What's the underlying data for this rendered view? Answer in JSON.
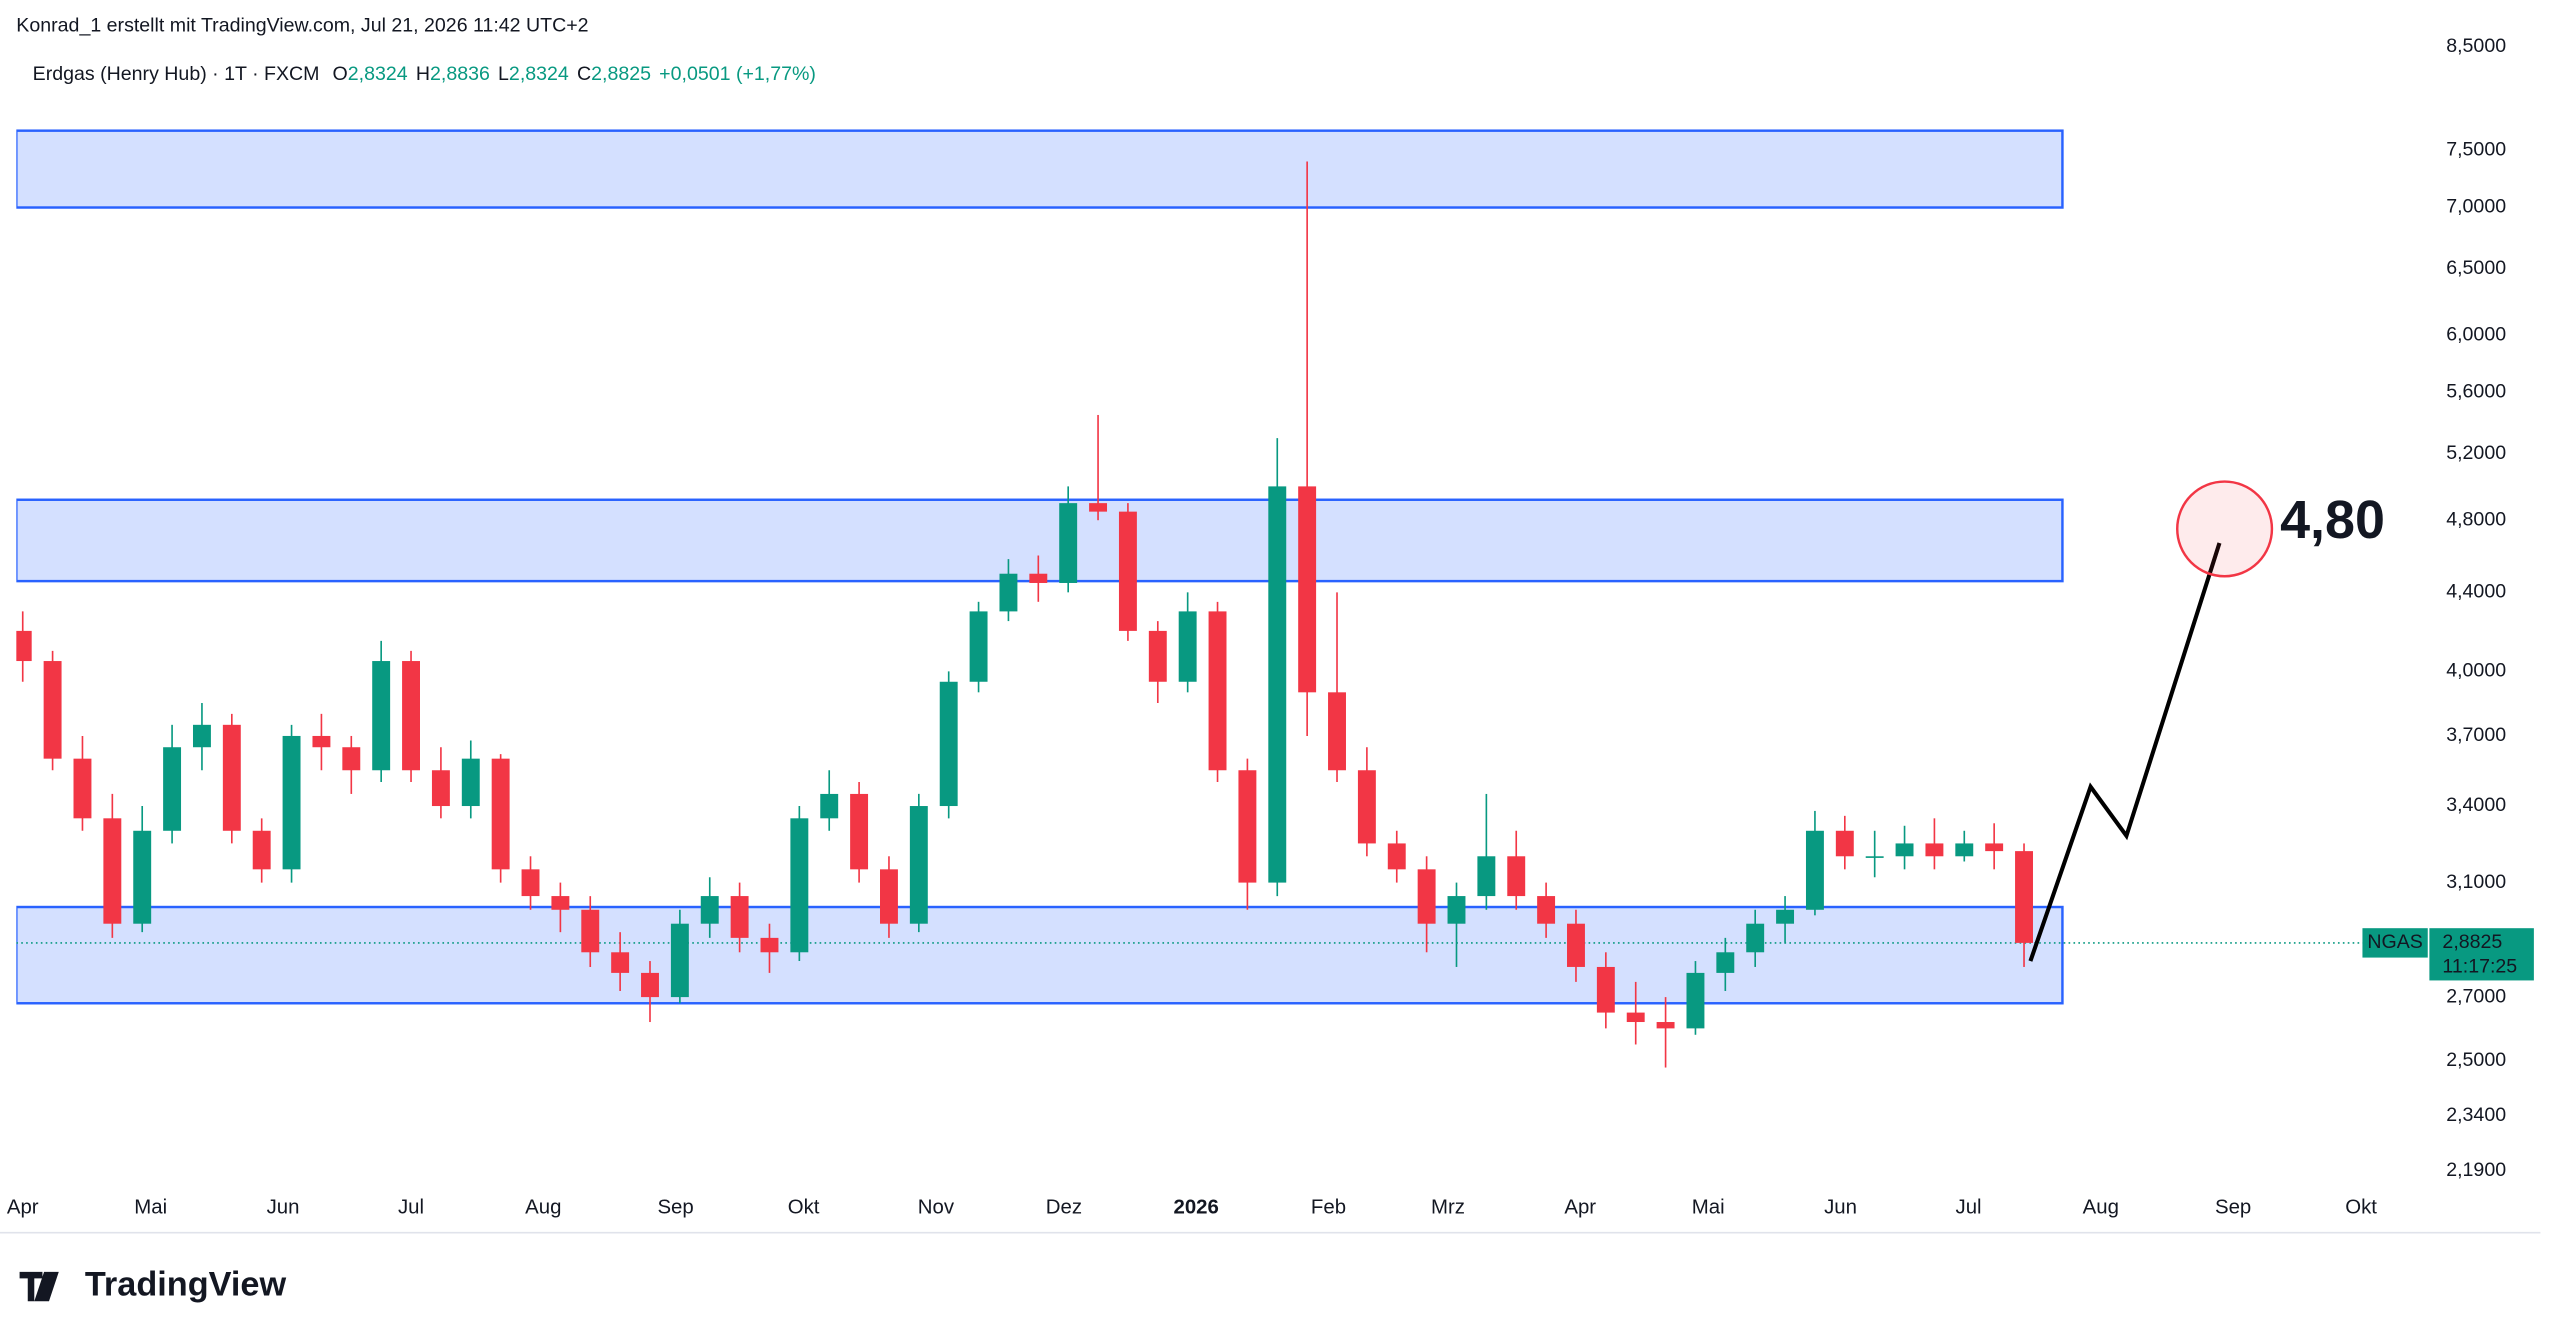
{
  "header": {
    "author_line": "Konrad_1 erstellt mit TradingView.com, Jul 21, 2026 11:42 UTC+2"
  },
  "footer": {
    "brand": "TradingView"
  },
  "chart_data": {
    "type": "candlestick",
    "symbol": "Erdgas (Henry Hub) · 1T · FXCM",
    "ohlc_legend": [
      {
        "key": "O",
        "label": "2,8324"
      },
      {
        "key": "H",
        "label": "2,8836"
      },
      {
        "key": "L",
        "label": "2,8324"
      },
      {
        "key": "C",
        "label": "2,8825"
      }
    ],
    "change": "+0,0501 (+1,77%)",
    "log_y": true,
    "grid": false,
    "up_color": "#089981",
    "down_color": "#f23645",
    "ylim": [
      2.143,
      8.61
    ],
    "yticks": [
      {
        "value": 2.19,
        "label": "2,1900"
      },
      {
        "value": 2.34,
        "label": "2,3400"
      },
      {
        "value": 2.5,
        "label": "2,5000"
      },
      {
        "value": 2.7,
        "label": "2,7000"
      },
      {
        "value": 3.1,
        "label": "3,1000"
      },
      {
        "value": 3.4,
        "label": "3,4000"
      },
      {
        "value": 3.7,
        "label": "3,7000"
      },
      {
        "value": 4,
        "label": "4,0000"
      },
      {
        "value": 4.4,
        "label": "4,4000"
      },
      {
        "value": 4.8,
        "label": "4,8000"
      },
      {
        "value": 5.2,
        "label": "5,2000"
      },
      {
        "value": 5.6,
        "label": "5,6000"
      },
      {
        "value": 6,
        "label": "6,0000"
      },
      {
        "value": 6.5,
        "label": "6,5000"
      },
      {
        "value": 7,
        "label": "7,0000"
      },
      {
        "value": 7.5,
        "label": "7,5000"
      },
      {
        "value": 8.5,
        "label": "8,5000"
      }
    ],
    "xlim": [
      -1.5,
      561.7
    ],
    "xticks": [
      {
        "value": 0,
        "label": "Apr"
      },
      {
        "value": 30,
        "label": "Mai"
      },
      {
        "value": 61,
        "label": "Jun"
      },
      {
        "value": 91,
        "label": "Jul"
      },
      {
        "value": 122,
        "label": "Aug"
      },
      {
        "value": 153,
        "label": "Sep"
      },
      {
        "value": 183,
        "label": "Okt"
      },
      {
        "value": 214,
        "label": "Nov"
      },
      {
        "value": 244,
        "label": "Dez"
      },
      {
        "value": 275,
        "label": "2026"
      },
      {
        "value": 306,
        "label": "Feb"
      },
      {
        "value": 334,
        "label": "Mrz"
      },
      {
        "value": 365,
        "label": "Apr"
      },
      {
        "value": 395,
        "label": "Mai"
      },
      {
        "value": 426,
        "label": "Jun"
      },
      {
        "value": 456,
        "label": "Jul"
      },
      {
        "value": 487,
        "label": "Aug"
      },
      {
        "value": 518,
        "label": "Sep"
      },
      {
        "value": 548,
        "label": "Okt"
      }
    ],
    "x": [
      0,
      7,
      14,
      21,
      28,
      35,
      42,
      49,
      56,
      63,
      70,
      77,
      84,
      91,
      98,
      105,
      112,
      119,
      126,
      133,
      140,
      147,
      154,
      161,
      168,
      175,
      182,
      189,
      196,
      203,
      210,
      217,
      224,
      231,
      238,
      245,
      252,
      259,
      266,
      273,
      280,
      287,
      294,
      301,
      308,
      315,
      322,
      329,
      336,
      343,
      350,
      357,
      364,
      371,
      378,
      385,
      392,
      399,
      406,
      413,
      420,
      427,
      434,
      441,
      448,
      455,
      462,
      469
    ],
    "open": [
      4.2,
      4.05,
      3.6,
      3.35,
      2.95,
      3.3,
      3.65,
      3.75,
      3.3,
      3.15,
      3.7,
      3.65,
      3.55,
      4.05,
      3.55,
      3.4,
      3.6,
      3.15,
      3.05,
      3.0,
      2.85,
      2.78,
      2.7,
      2.95,
      3.05,
      2.9,
      2.85,
      3.35,
      3.45,
      3.15,
      2.95,
      3.4,
      3.95,
      4.3,
      4.5,
      4.45,
      4.9,
      4.85,
      4.2,
      3.95,
      4.3,
      3.55,
      3.1,
      5.0,
      3.9,
      3.55,
      3.25,
      3.15,
      2.95,
      3.05,
      3.2,
      3.05,
      2.95,
      2.8,
      2.65,
      2.62,
      2.6,
      2.78,
      2.85,
      2.95,
      3.0,
      3.3,
      3.2,
      3.2,
      3.25,
      3.2,
      3.25,
      3.22
    ],
    "high": [
      4.3,
      4.1,
      3.7,
      3.45,
      3.4,
      3.75,
      3.85,
      3.8,
      3.35,
      3.75,
      3.8,
      3.7,
      4.15,
      4.1,
      3.65,
      3.68,
      3.62,
      3.2,
      3.1,
      3.05,
      2.92,
      2.82,
      3.0,
      3.12,
      3.1,
      2.95,
      3.4,
      3.55,
      3.5,
      3.2,
      3.45,
      4.0,
      4.35,
      4.58,
      4.6,
      5.0,
      5.45,
      4.9,
      4.25,
      4.4,
      4.35,
      3.6,
      5.3,
      7.4,
      4.4,
      3.65,
      3.3,
      3.2,
      3.1,
      3.45,
      3.3,
      3.1,
      3.0,
      2.85,
      2.75,
      2.7,
      2.82,
      2.9,
      3.0,
      3.05,
      3.38,
      3.36,
      3.3,
      3.32,
      3.35,
      3.3,
      3.33,
      3.25
    ],
    "low": [
      3.95,
      3.55,
      3.3,
      2.9,
      2.92,
      3.25,
      3.55,
      3.25,
      3.1,
      3.1,
      3.55,
      3.45,
      3.5,
      3.5,
      3.35,
      3.35,
      3.1,
      3.0,
      2.92,
      2.8,
      2.72,
      2.62,
      2.68,
      2.9,
      2.85,
      2.78,
      2.82,
      3.3,
      3.1,
      2.9,
      2.92,
      3.35,
      3.9,
      4.25,
      4.35,
      4.4,
      4.8,
      4.15,
      3.85,
      3.9,
      3.5,
      3.0,
      3.05,
      3.7,
      3.5,
      3.2,
      3.1,
      2.85,
      2.8,
      3.0,
      3.0,
      2.9,
      2.75,
      2.6,
      2.55,
      2.48,
      2.58,
      2.72,
      2.8,
      2.88,
      2.98,
      3.15,
      3.12,
      3.15,
      3.15,
      3.18,
      3.15,
      2.8
    ],
    "close": [
      4.05,
      3.6,
      3.35,
      2.95,
      3.3,
      3.65,
      3.75,
      3.3,
      3.15,
      3.7,
      3.65,
      3.55,
      4.05,
      3.55,
      3.4,
      3.6,
      3.15,
      3.05,
      3.0,
      2.85,
      2.78,
      2.7,
      2.95,
      3.05,
      2.9,
      2.85,
      3.35,
      3.45,
      3.15,
      2.95,
      3.4,
      3.95,
      4.3,
      4.5,
      4.45,
      4.9,
      4.85,
      4.2,
      3.95,
      4.3,
      3.55,
      3.1,
      5.0,
      3.9,
      3.55,
      3.25,
      3.15,
      2.95,
      3.05,
      3.2,
      3.05,
      2.95,
      2.8,
      2.65,
      2.62,
      2.6,
      2.78,
      2.85,
      2.95,
      3.0,
      3.3,
      3.2,
      3.2,
      3.25,
      3.2,
      3.25,
      3.22,
      2.8825
    ],
    "zones": [
      {
        "low": 7.0,
        "high": 7.68
      },
      {
        "low": 4.46,
        "high": 4.92
      },
      {
        "low": 2.68,
        "high": 3.01
      }
    ],
    "zones_end_x": 478,
    "projection": {
      "x": [
        470.5,
        484.6,
        493,
        514.8
      ],
      "y": [
        2.82,
        3.48,
        3.28,
        4.67
      ]
    },
    "target": {
      "x": 516,
      "y": 4.75,
      "label": "4,80"
    },
    "last_price": {
      "value": 2.8825,
      "label": "2,8825"
    },
    "ticker": "NGAS",
    "countdown": "11:17:25"
  }
}
